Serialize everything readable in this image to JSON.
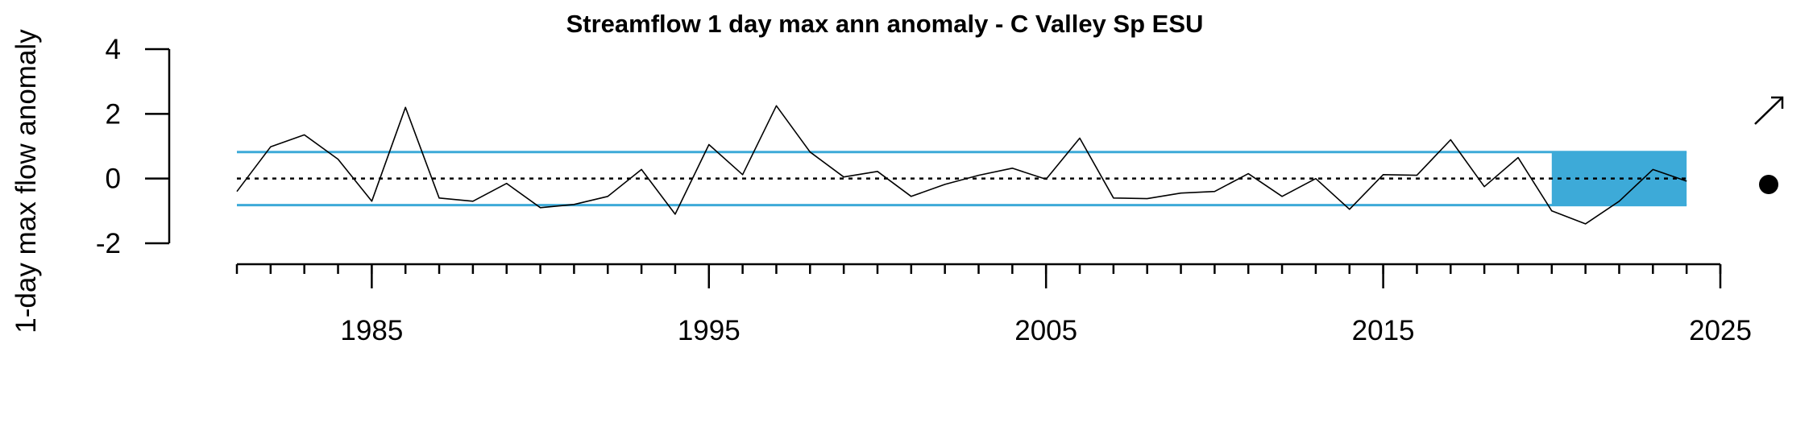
{
  "chart_data": {
    "type": "line",
    "title": "Streamflow 1 day max ann anomaly - C Valley Sp ESU",
    "ylabel": "1-day max flow anomaly",
    "xlabel": "",
    "xlim": [
      1981,
      2025
    ],
    "ylim": [
      -2,
      4
    ],
    "x_ticks": [
      1985,
      1995,
      2005,
      2015,
      2025
    ],
    "y_ticks": [
      -2,
      0,
      2,
      4
    ],
    "reference_lines": {
      "mean": 0,
      "upper_sd": 0.82,
      "lower_sd": -0.82
    },
    "highlight_period": [
      2020,
      2024
    ],
    "trend_symbol": "up-right-arrow",
    "mean_symbol": "filled-circle",
    "colors": {
      "line": "#000000",
      "sd_lines": "#3daad8",
      "highlight": "#3daad8"
    },
    "series": [
      {
        "x": [
          1981,
          1982,
          1983,
          1984,
          1985,
          1986,
          1987,
          1988,
          1989,
          1990,
          1991,
          1992,
          1993,
          1994,
          1995,
          1996,
          1997,
          1998,
          1999,
          2000,
          2001,
          2002,
          2003,
          2004,
          2005,
          2006,
          2007,
          2008,
          2009,
          2010,
          2011,
          2012,
          2013,
          2014,
          2015,
          2016,
          2017,
          2018,
          2019,
          2020,
          2021,
          2022,
          2023,
          2024
        ],
        "values": [
          -0.4,
          0.98,
          1.35,
          0.6,
          -0.7,
          2.2,
          -0.6,
          -0.7,
          -0.15,
          -0.9,
          -0.8,
          -0.55,
          0.28,
          -1.1,
          1.05,
          0.12,
          2.25,
          0.82,
          0.05,
          0.22,
          -0.55,
          -0.18,
          0.1,
          0.32,
          -0.02,
          1.25,
          -0.6,
          -0.62,
          -0.45,
          -0.4,
          0.15,
          -0.55,
          0.0,
          -0.95,
          0.12,
          0.1,
          1.2,
          -0.25,
          0.65,
          -1.0,
          -1.4,
          -0.7,
          0.28,
          -0.08
        ]
      }
    ]
  }
}
